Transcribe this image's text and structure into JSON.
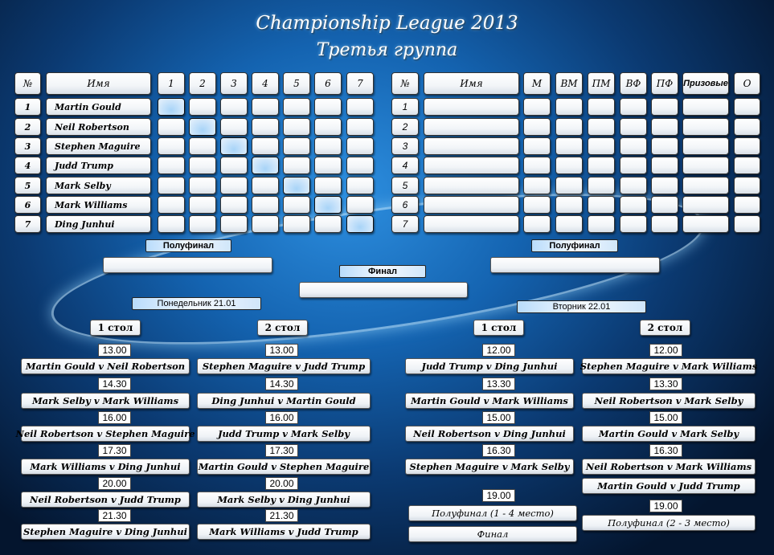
{
  "header": {
    "title": "Championship League 2013",
    "subtitle": "Третья группа"
  },
  "left_table": {
    "headers": [
      "№",
      "Имя",
      "1",
      "2",
      "3",
      "4",
      "5",
      "6",
      "7"
    ],
    "players": [
      {
        "n": "1",
        "name": "Martin Gould"
      },
      {
        "n": "2",
        "name": "Neil Robertson"
      },
      {
        "n": "3",
        "name": "Stephen Maguire"
      },
      {
        "n": "4",
        "name": "Judd Trump"
      },
      {
        "n": "5",
        "name": "Mark Selby"
      },
      {
        "n": "6",
        "name": "Mark Williams"
      },
      {
        "n": "7",
        "name": "Ding Junhui"
      }
    ]
  },
  "right_table": {
    "headers": [
      "№",
      "Имя",
      "М",
      "ВМ",
      "ПМ",
      "ВФ",
      "ПФ",
      "Призовые",
      "О"
    ],
    "rows": [
      "1",
      "2",
      "3",
      "4",
      "5",
      "6",
      "7"
    ]
  },
  "playoffs": {
    "semi_left": "Полуфинал",
    "semi_right": "Полуфинал",
    "final": "Финал"
  },
  "days": [
    {
      "label": "Понедельник 21.01",
      "tables": [
        {
          "label": "1 стол",
          "slots": [
            {
              "time": "13.00",
              "match": "Martin Gould v Neil Robertson"
            },
            {
              "time": "14.30",
              "match": "Mark Selby v Mark Williams"
            },
            {
              "time": "16.00",
              "match": "Neil Robertson v Stephen Maguire"
            },
            {
              "time": "17.30",
              "match": "Mark Williams  v Ding Junhui"
            },
            {
              "time": "20.00",
              "match": "Neil Robertson  v Judd Trump"
            },
            {
              "time": "21.30",
              "match": "Stephen Maguire v Ding Junhui"
            }
          ]
        },
        {
          "label": "2 стол",
          "slots": [
            {
              "time": "13.00",
              "match": "Stephen Maguire v Judd Trump"
            },
            {
              "time": "14.30",
              "match": "Ding Junhui v Martin Gould"
            },
            {
              "time": "16.00",
              "match": "Judd Trump  v Mark Selby"
            },
            {
              "time": "17.30",
              "match": "Martin Gould  v  Stephen Maguire"
            },
            {
              "time": "20.00",
              "match": "Mark Selby v Ding Junhui"
            },
            {
              "time": "21.30",
              "match": "Mark Williams  v Judd Trump"
            }
          ]
        }
      ]
    },
    {
      "label": "Вторник  22.01",
      "tables": [
        {
          "label": "1 стол",
          "slots": [
            {
              "time": "12.00",
              "match": "Judd Trump v Ding Junhui"
            },
            {
              "time": "13.30",
              "match": "Martin Gould v Mark Williams"
            },
            {
              "time": "15.00",
              "match": "Neil Robertson v Ding Junhui"
            },
            {
              "time": "16.30",
              "match": "Stephen Maguire v Mark Selby"
            },
            {
              "time": "19.00",
              "match": "Полуфинал  (1 - 4 место)"
            },
            {
              "time": "",
              "match": "Финал"
            }
          ]
        },
        {
          "label": "2 стол",
          "slots": [
            {
              "time": "12.00",
              "match": "Stephen Maguire v Mark Williams"
            },
            {
              "time": "13.30",
              "match": "Neil Robertson v Mark Selby"
            },
            {
              "time": "15.00",
              "match": "Martin Gould v Mark Selby"
            },
            {
              "time": "16.30",
              "match": "Neil Robertson v Mark Williams"
            },
            {
              "time": "",
              "match": "Martin Gould v Judd Trump"
            },
            {
              "time": "19.00",
              "match": "Полуфинал  (2 - 3 место)"
            }
          ]
        }
      ]
    }
  ]
}
